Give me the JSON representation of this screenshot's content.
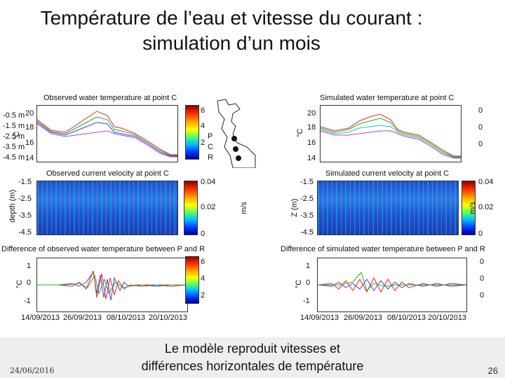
{
  "slide": {
    "title_line1": "Température de l’eau et vitesse du courant :",
    "title_line2": "simulation d’un mois",
    "caption_line1": "Le modèle reproduit vitesses et",
    "caption_line2": "différences horizontales de température",
    "date": "24/06/2016",
    "page_number": "26"
  },
  "legend": [
    "-0.5 m",
    "-1.5 m",
    "-2.5 m",
    "-3.5 m",
    "-4.5 m"
  ],
  "stations": [
    "P",
    "C",
    "R"
  ],
  "units": {
    "ms": "m/s",
    "celsius": "°C",
    "depth_obs": "depth (m)",
    "depth_sim": "Z (m)"
  },
  "panels": {
    "obs_temp_title": "Observed water temperature at point C",
    "sim_temp_title": "Simulated water temperature at point C",
    "obs_vel_title": "Observed current velocity at point C",
    "sim_vel_title": "Simulated current velocity at point C",
    "obs_diff_title": "Difference of observed water temperature between P and R",
    "sim_diff_title": "Difference of simulated water temperature between P and R"
  },
  "axes": {
    "temp_ticks": [
      "20",
      "18",
      "16",
      "14"
    ],
    "depth_ticks": [
      "-1.5",
      "-2.5",
      "-3.5",
      "-4.5"
    ],
    "diff_ticks": [
      "1",
      "0",
      "-1"
    ],
    "date_ticks": [
      "14/09/2013",
      "26/09/2013",
      "08/10/2013",
      "20/10/2013"
    ],
    "vel_cbar_ticks": [
      "0.04",
      "0.02",
      "0"
    ],
    "obs_temp_cbar_ticks": [
      "6",
      "4",
      "2"
    ],
    "sim_temp_cbar_ticks": [
      "0",
      "0",
      "0"
    ]
  },
  "colors": {
    "footer": "#eeeeee",
    "series": [
      "#ff2020",
      "#20b020",
      "#4040ff",
      "#20c0c0",
      "#c040c0"
    ]
  }
}
